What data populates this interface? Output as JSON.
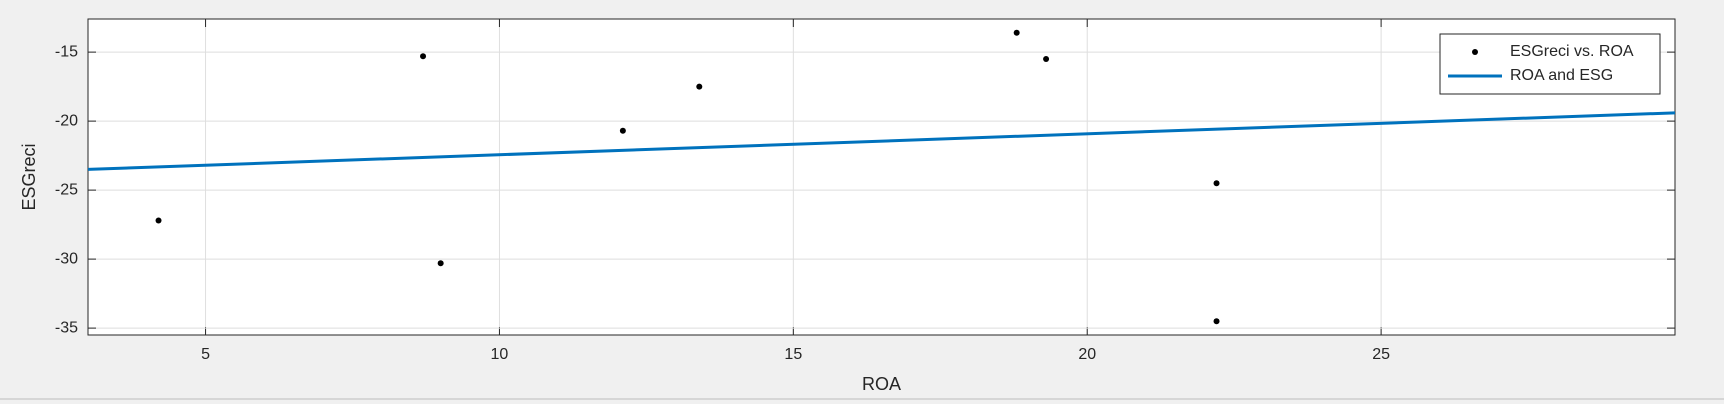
{
  "chart_data": {
    "type": "scatter",
    "xlabel": "ROA",
    "ylabel": "ESGreci",
    "xlim": [
      3,
      30
    ],
    "xticks": [
      5,
      10,
      15,
      20,
      25
    ],
    "ylim": [
      -35.5,
      -12.6
    ],
    "yticks": [
      -35,
      -30,
      -25,
      -20,
      -15
    ],
    "grid": true,
    "legend": "northeast",
    "series": [
      {
        "name": "ESGreci vs. ROA",
        "type": "scatter",
        "color": "#000000",
        "x": [
          4.2,
          8.7,
          9.0,
          12.1,
          13.4,
          18.8,
          19.3,
          22.2,
          22.2
        ],
        "values": [
          -27.2,
          -15.3,
          -30.3,
          -20.7,
          -17.5,
          -13.6,
          -15.5,
          -24.5,
          -34.5
        ]
      },
      {
        "name": "ROA and ESG",
        "type": "line",
        "color": "#0072bd",
        "x": [
          3,
          30
        ],
        "values": [
          -23.5,
          -19.4
        ]
      }
    ]
  }
}
